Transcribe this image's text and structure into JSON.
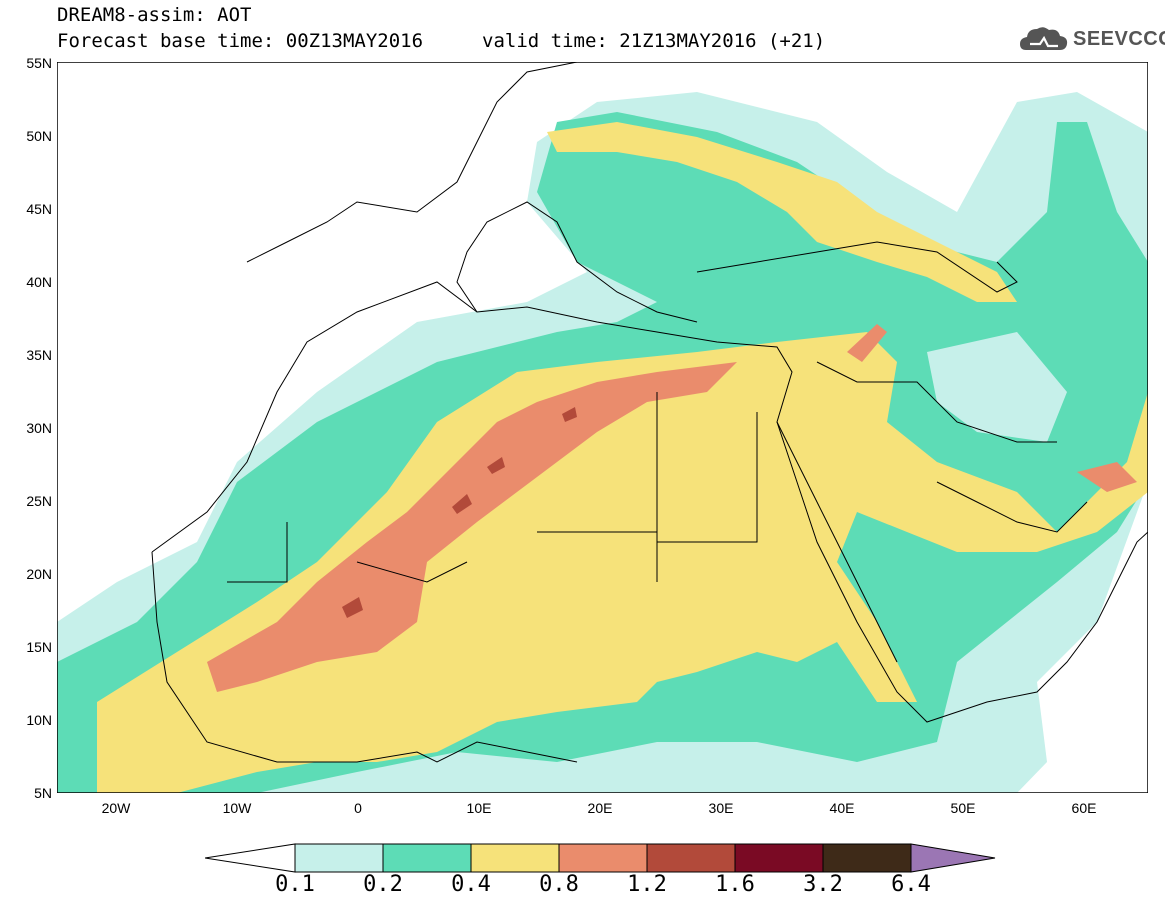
{
  "title": {
    "line1": "DREAM8-assim: AOT",
    "line2": "Forecast base time: 00Z13MAY2016",
    "valid": "valid time: 21Z13MAY2016 (+21)"
  },
  "logo": {
    "text": "SEEVCCC",
    "icon": "cloud-logo-icon"
  },
  "map": {
    "lon_range": [
      -25,
      65
    ],
    "lat_range": [
      5,
      55
    ],
    "y_ticks": [
      "55N",
      "50N",
      "45N",
      "40N",
      "35N",
      "30N",
      "25N",
      "20N",
      "15N",
      "10N",
      "5N"
    ],
    "x_ticks": [
      "20W",
      "10W",
      "0",
      "10E",
      "20E",
      "30E",
      "40E",
      "50E",
      "60E"
    ],
    "regions_shown": "North Africa, Middle East, Europe",
    "colors": {
      "0.1-0.2": "#c6f0ea",
      "0.2-0.4": "#5ddcb6",
      "0.4-0.8": "#f6e27a",
      "0.8-1.2": "#ea8c6c",
      "1.2-1.6": "#b24a3a",
      "1.6-3.2": "#7a0a24",
      "3.2-6.4": "#3e2a18",
      "above_6.4": "#9b76b4"
    }
  },
  "colorbar": {
    "labels": [
      "0.1",
      "0.2",
      "0.4",
      "0.8",
      "1.2",
      "1.6",
      "3.2",
      "6.4"
    ]
  }
}
